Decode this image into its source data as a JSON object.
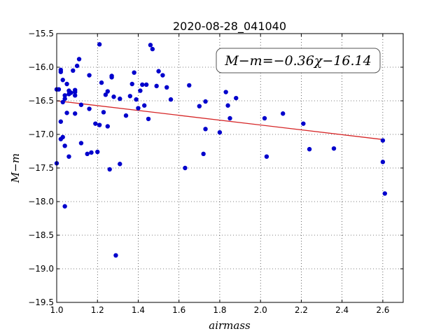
{
  "chart_data": {
    "type": "scatter",
    "title": "2020-08-28_041040",
    "xlabel": "airmass",
    "ylabel": "M−m",
    "xlim": [
      1.0,
      2.7
    ],
    "ylim": [
      -19.5,
      -15.5
    ],
    "y_inverted": true,
    "grid": true,
    "x_ticks": [
      "1.0",
      "1.2",
      "1.4",
      "1.6",
      "1.8",
      "2.0",
      "2.2",
      "2.4",
      "2.6"
    ],
    "y_ticks": [
      "−15.5",
      "−16.0",
      "−16.5",
      "−17.0",
      "−17.5",
      "−18.0",
      "−18.5",
      "−19.0",
      "−19.5"
    ],
    "annotation": "M−m=−0.36χ−16.14",
    "fit": {
      "slope": -0.36,
      "intercept": -16.14,
      "x_range": [
        1.0,
        2.6
      ],
      "color": "#d62728"
    },
    "series": [
      {
        "color": "#0000cc",
        "points": [
          [
            1.0,
            -16.33
          ],
          [
            1.0,
            -17.43
          ],
          [
            1.01,
            -16.33
          ],
          [
            1.02,
            -16.07
          ],
          [
            1.02,
            -16.04
          ],
          [
            1.03,
            -16.52
          ],
          [
            1.02,
            -16.81
          ],
          [
            1.02,
            -17.07
          ],
          [
            1.03,
            -17.04
          ],
          [
            1.03,
            -16.19
          ],
          [
            1.04,
            -16.47
          ],
          [
            1.04,
            -16.42
          ],
          [
            1.04,
            -17.17
          ],
          [
            1.04,
            -18.07
          ],
          [
            1.05,
            -16.68
          ],
          [
            1.05,
            -16.25
          ],
          [
            1.06,
            -16.35
          ],
          [
            1.06,
            -16.4
          ],
          [
            1.06,
            -17.33
          ],
          [
            1.07,
            -16.38
          ],
          [
            1.08,
            -16.05
          ],
          [
            1.09,
            -16.42
          ],
          [
            1.09,
            -16.34
          ],
          [
            1.09,
            -16.37
          ],
          [
            1.1,
            -15.98
          ],
          [
            1.09,
            -16.69
          ],
          [
            1.11,
            -15.88
          ],
          [
            1.12,
            -16.56
          ],
          [
            1.12,
            -17.13
          ],
          [
            1.15,
            -17.29
          ],
          [
            1.16,
            -16.12
          ],
          [
            1.16,
            -16.62
          ],
          [
            1.17,
            -17.27
          ],
          [
            1.19,
            -16.84
          ],
          [
            1.2,
            -17.26
          ],
          [
            1.21,
            -16.86
          ],
          [
            1.21,
            -15.66
          ],
          [
            1.22,
            -16.23
          ],
          [
            1.23,
            -16.67
          ],
          [
            1.24,
            -16.41
          ],
          [
            1.25,
            -16.88
          ],
          [
            1.25,
            -16.36
          ],
          [
            1.26,
            -17.52
          ],
          [
            1.27,
            -16.13
          ],
          [
            1.27,
            -16.15
          ],
          [
            1.28,
            -16.44
          ],
          [
            1.29,
            -18.8
          ],
          [
            1.31,
            -17.44
          ],
          [
            1.31,
            -16.47
          ],
          [
            1.34,
            -16.72
          ],
          [
            1.36,
            -16.43
          ],
          [
            1.37,
            -16.25
          ],
          [
            1.38,
            -16.08
          ],
          [
            1.39,
            -16.48
          ],
          [
            1.4,
            -16.61
          ],
          [
            1.41,
            -16.35
          ],
          [
            1.42,
            -16.26
          ],
          [
            1.43,
            -16.57
          ],
          [
            1.44,
            -16.26
          ],
          [
            1.45,
            -16.77
          ],
          [
            1.46,
            -15.67
          ],
          [
            1.47,
            -15.73
          ],
          [
            1.49,
            -16.28
          ],
          [
            1.5,
            -16.06
          ],
          [
            1.52,
            -16.12
          ],
          [
            1.54,
            -16.3
          ],
          [
            1.56,
            -16.48
          ],
          [
            1.63,
            -17.5
          ],
          [
            1.65,
            -16.27
          ],
          [
            1.7,
            -16.58
          ],
          [
            1.72,
            -17.29
          ],
          [
            1.73,
            -16.51
          ],
          [
            1.73,
            -16.92
          ],
          [
            1.8,
            -16.97
          ],
          [
            1.83,
            -16.37
          ],
          [
            1.84,
            -16.57
          ],
          [
            1.85,
            -16.76
          ],
          [
            1.88,
            -16.46
          ],
          [
            2.02,
            -16.76
          ],
          [
            2.03,
            -17.33
          ],
          [
            2.11,
            -16.69
          ],
          [
            2.21,
            -16.84
          ],
          [
            2.24,
            -17.22
          ],
          [
            2.36,
            -17.21
          ],
          [
            2.6,
            -17.09
          ],
          [
            2.6,
            -17.41
          ],
          [
            2.61,
            -17.88
          ]
        ]
      }
    ]
  }
}
